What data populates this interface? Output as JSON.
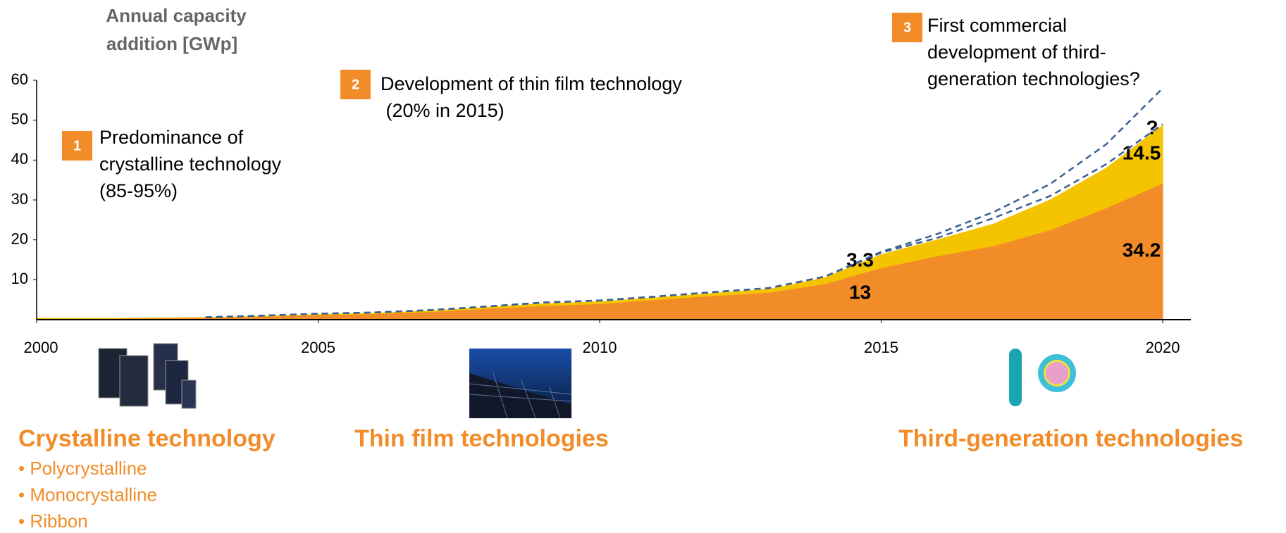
{
  "chart_data": {
    "type": "area",
    "y_axis_title": [
      "Annual capacity",
      "addition [GWp]"
    ],
    "x": [
      2000,
      2001,
      2002,
      2003,
      2004,
      2005,
      2006,
      2007,
      2008,
      2009,
      2010,
      2011,
      2012,
      2013,
      2014,
      2015,
      2016,
      2017,
      2018,
      2019,
      2020
    ],
    "series": [
      {
        "kind": "area",
        "color": "#f28c28",
        "values": [
          0.3,
          0.3,
          0.4,
          0.5,
          0.8,
          1.2,
          1.5,
          2,
          2.8,
          3.5,
          4,
          5,
          6,
          6.8,
          9,
          13,
          16,
          18.5,
          22.5,
          28,
          34.2
        ],
        "value_labels": [
          null,
          null,
          null,
          null,
          null,
          null,
          null,
          null,
          null,
          null,
          null,
          null,
          null,
          null,
          null,
          "13",
          null,
          null,
          null,
          null,
          "34.2"
        ]
      },
      {
        "kind": "area",
        "color": "#f5c400",
        "values": [
          0,
          0,
          0,
          0,
          0,
          0.1,
          0.1,
          0.2,
          0.3,
          0.5,
          0.5,
          0.5,
          0.6,
          0.8,
          1.5,
          3.3,
          4,
          5.5,
          7.5,
          10,
          14.5
        ],
        "value_labels": [
          null,
          null,
          null,
          null,
          null,
          null,
          null,
          null,
          null,
          null,
          null,
          null,
          null,
          null,
          null,
          "3.3",
          null,
          null,
          null,
          null,
          "14.5"
        ]
      },
      {
        "kind": "line",
        "dashed": true,
        "color": "#3a5f91",
        "values": [
          null,
          null,
          null,
          0.6,
          1,
          1.5,
          1.8,
          2.4,
          3.3,
          4.3,
          4.8,
          5.8,
          6.9,
          7.9,
          10.8,
          16.8,
          20.5,
          25.5,
          31,
          39,
          49
        ]
      },
      {
        "kind": "line",
        "dashed": true,
        "color": "#3a5f91",
        "values": [
          null,
          null,
          null,
          0.6,
          1,
          1.5,
          1.8,
          2.4,
          3.3,
          4.3,
          4.8,
          5.8,
          6.9,
          7.9,
          10.8,
          17,
          21.5,
          27,
          34,
          44,
          58
        ]
      }
    ],
    "xlim": [
      2000,
      2020.5
    ],
    "ylim": [
      0,
      60
    ],
    "xticks": [
      2000,
      2005,
      2010,
      2015,
      2020
    ],
    "yticks": [
      10,
      20,
      30,
      40,
      50,
      60
    ],
    "annotations": [
      {
        "number": "1",
        "lines": [
          "Predominance of",
          "crystalline technology",
          "(85-95%)"
        ]
      },
      {
        "number": "2",
        "lines": [
          "Development of thin film technology",
          " (20% in 2015)"
        ]
      },
      {
        "number": "3",
        "lines": [
          "First commercial",
          "development of third-",
          "generation technologies?"
        ]
      }
    ],
    "question_mark": "?",
    "technologies": [
      {
        "title": "Crystalline technology",
        "items": [
          "• Polycrystalline",
          "• Monocrystalline",
          "• Ribbon"
        ]
      },
      {
        "title": "Thin film technologies",
        "items": []
      },
      {
        "title": "Third-generation technologies",
        "items": []
      }
    ]
  }
}
